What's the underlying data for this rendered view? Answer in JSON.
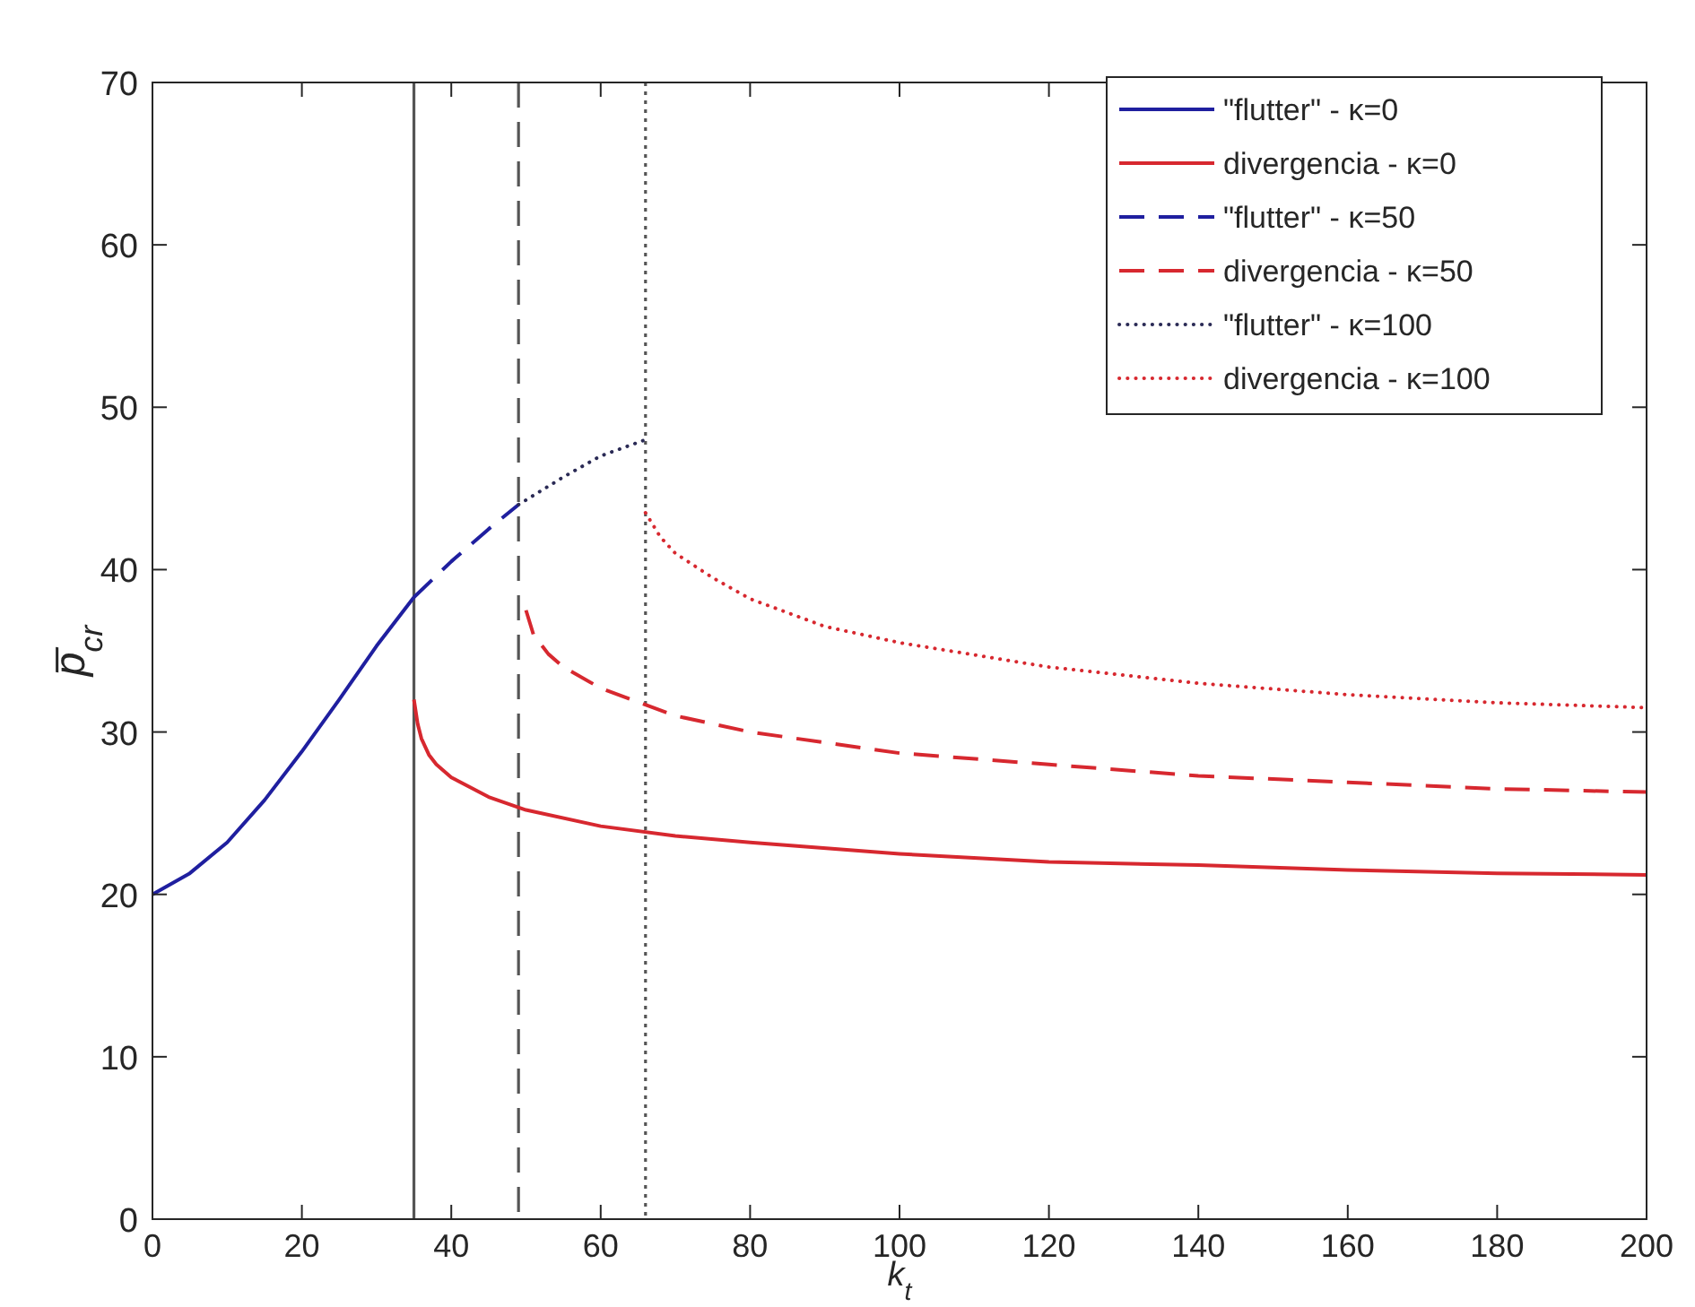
{
  "chart_data": {
    "type": "line",
    "xlabel": "k$_{t}$",
    "ylabel": "p̅$_{cr}$",
    "xlim": [
      0,
      200
    ],
    "ylim": [
      0,
      70
    ],
    "xticks": [
      0,
      20,
      40,
      60,
      80,
      100,
      120,
      140,
      160,
      180,
      200
    ],
    "yticks": [
      0,
      10,
      20,
      30,
      40,
      50,
      60,
      70
    ],
    "grid": false,
    "legend": "top right",
    "marker": "none",
    "series": [
      {
        "name": "\"flutter\" - κ=0",
        "color": "#1f1f9f",
        "line_style": "solid",
        "x": [
          0,
          5,
          10,
          15,
          20,
          25,
          30,
          35
        ],
        "values": [
          20,
          21.3,
          23.2,
          25.8,
          28.8,
          32,
          35.3,
          38.3
        ]
      },
      {
        "name": "divergencia - κ=0",
        "color": "#d7282f",
        "line_style": "solid",
        "x": [
          35,
          35.5,
          36,
          37,
          38,
          40,
          45,
          50,
          60,
          70,
          80,
          100,
          120,
          140,
          160,
          180,
          200
        ],
        "values": [
          32,
          30.5,
          29.6,
          28.6,
          28,
          27.2,
          26,
          25.2,
          24.2,
          23.6,
          23.2,
          22.5,
          22,
          21.8,
          21.5,
          21.3,
          21.2
        ]
      },
      {
        "name": "\"flutter\" - κ=50",
        "color": "#1f1f9f",
        "line_style": "dashed",
        "x": [
          35,
          40,
          45,
          49
        ],
        "values": [
          38.3,
          40.5,
          42.5,
          44
        ]
      },
      {
        "name": "divergencia -  κ=50",
        "color": "#d7282f",
        "line_style": "dashed",
        "x": [
          50,
          51,
          53,
          55,
          60,
          70,
          80,
          100,
          120,
          140,
          160,
          180,
          200
        ],
        "values": [
          37.5,
          36,
          34.8,
          34,
          32.7,
          31,
          30,
          28.7,
          28,
          27.3,
          26.9,
          26.5,
          26.3
        ]
      },
      {
        "name": "\"flutter\" - κ=100",
        "color": "#2a2a55",
        "line_style": "dotted",
        "x": [
          49,
          55,
          60,
          66
        ],
        "values": [
          44,
          45.7,
          47,
          48
        ]
      },
      {
        "name": "divergencia  - κ=100",
        "color": "#d7282f",
        "line_style": "dotted",
        "x": [
          66,
          68,
          70,
          75,
          80,
          90,
          100,
          120,
          140,
          160,
          180,
          200
        ],
        "values": [
          43.5,
          42,
          41,
          39.5,
          38.2,
          36.5,
          35.5,
          34,
          33,
          32.3,
          31.8,
          31.5
        ]
      }
    ],
    "ref_lines": [
      {
        "axis": "x",
        "value": 35,
        "color": "#555555",
        "line_style": "solid"
      },
      {
        "axis": "x",
        "value": 49,
        "color": "#555555",
        "line_style": "dashed"
      },
      {
        "axis": "x",
        "value": 66,
        "color": "#555555",
        "line_style": "dotted"
      }
    ]
  }
}
